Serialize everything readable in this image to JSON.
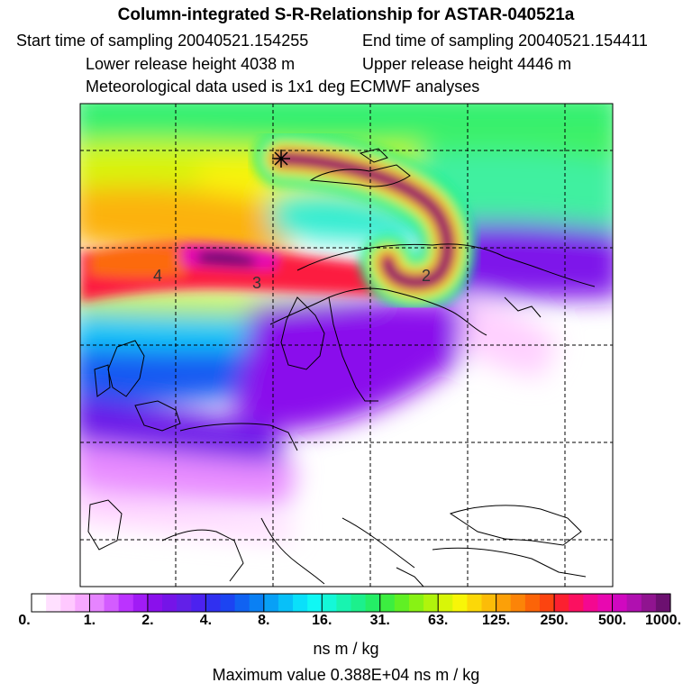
{
  "header": {
    "title": "Column-integrated S-R-Relationship for ASTAR-040521a",
    "start": "Start time of sampling 20040521.154255",
    "end": "End time of sampling 20040521.154411",
    "lower": "Lower release height 4038 m",
    "upper": "Upper release height 4446 m",
    "met": "Meteorological data used is 1x1 deg ECMWF analyses"
  },
  "map": {
    "contour_labels": [
      "4",
      "3",
      "2"
    ],
    "release_marker": "star-icon"
  },
  "colorbar": {
    "ticks": [
      "0.",
      "1.",
      "2.",
      "4.",
      "8.",
      "16.",
      "31.",
      "63.",
      "125.",
      "250.",
      "500.",
      "1000."
    ],
    "colors": [
      "#ffffff",
      "#ffe0ff",
      "#ffc8ff",
      "#f7a8ff",
      "#e684ff",
      "#d35cff",
      "#bb33ff",
      "#a11cf5",
      "#8a10ec",
      "#7514e8",
      "#6220e8",
      "#4c22f0",
      "#3030f0",
      "#1c44f2",
      "#1062f2",
      "#0a80f4",
      "#08a0f6",
      "#08c0f8",
      "#0ae0fa",
      "#10f8f4",
      "#14f8d8",
      "#18f4b0",
      "#1cf08c",
      "#24ee66",
      "#3cee40",
      "#60f024",
      "#88f214",
      "#b0f40c",
      "#d8f608",
      "#f8f608",
      "#fcd808",
      "#fcbc08",
      "#fca008",
      "#fc8408",
      "#fc6408",
      "#fc4410",
      "#fc2030",
      "#fc1060",
      "#f40890",
      "#e808b0",
      "#d008c0",
      "#b010b0",
      "#901490",
      "#6c1070"
    ],
    "units": "ns m / kg",
    "max_value": "Maximum value  0.388E+04 ns m / kg"
  }
}
